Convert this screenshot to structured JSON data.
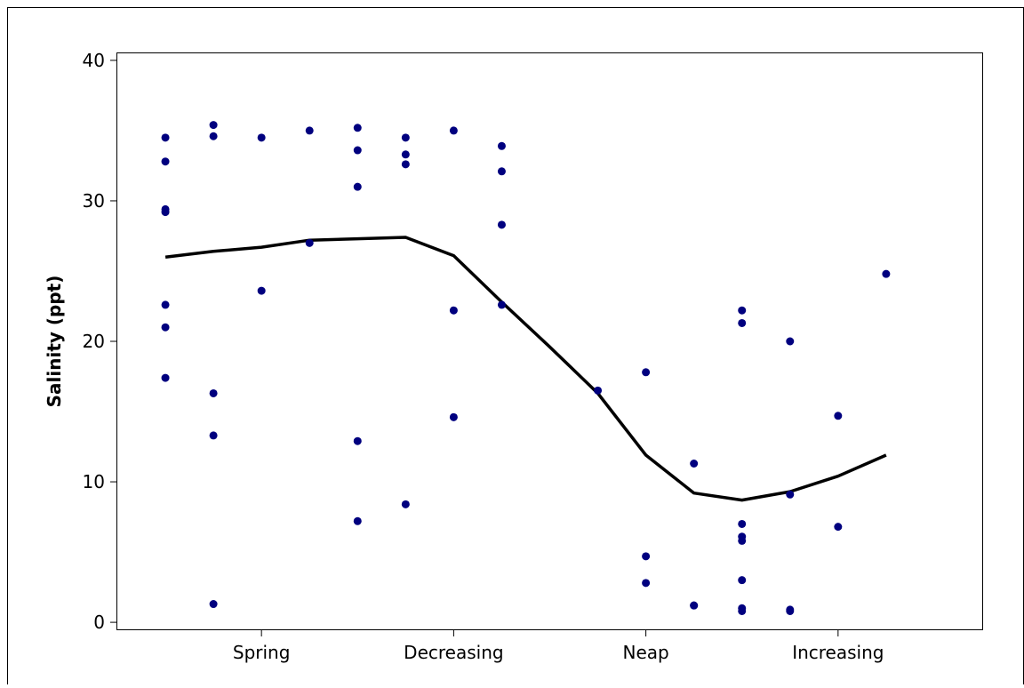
{
  "chart_data": {
    "type": "scatter",
    "title": "",
    "xlabel": "",
    "ylabel": "Salinity (ppt)",
    "ylim": [
      -0.5,
      40.5
    ],
    "xlim": [
      0,
      18
    ],
    "y_ticks": [
      0,
      10,
      20,
      30,
      40
    ],
    "x_tick_labels": [
      {
        "x": 3,
        "label": "Spring"
      },
      {
        "x": 7,
        "label": "Decreasing"
      },
      {
        "x": 11,
        "label": "Neap"
      },
      {
        "x": 15,
        "label": "Increasing"
      }
    ],
    "grid": false,
    "legend": "none",
    "colors": {
      "points": "#00007f",
      "line": "#000000"
    },
    "points": [
      {
        "x": 1,
        "y": 34.5
      },
      {
        "x": 1,
        "y": 32.8
      },
      {
        "x": 1,
        "y": 29.4
      },
      {
        "x": 1,
        "y": 29.2
      },
      {
        "x": 1,
        "y": 22.6
      },
      {
        "x": 1,
        "y": 21.0
      },
      {
        "x": 1,
        "y": 17.4
      },
      {
        "x": 2,
        "y": 35.4
      },
      {
        "x": 2,
        "y": 34.6
      },
      {
        "x": 2,
        "y": 16.3
      },
      {
        "x": 2,
        "y": 13.3
      },
      {
        "x": 2,
        "y": 1.3
      },
      {
        "x": 3,
        "y": 34.5
      },
      {
        "x": 3,
        "y": 23.6
      },
      {
        "x": 4,
        "y": 35.0
      },
      {
        "x": 4,
        "y": 27.0
      },
      {
        "x": 5,
        "y": 35.2
      },
      {
        "x": 5,
        "y": 33.6
      },
      {
        "x": 5,
        "y": 31.0
      },
      {
        "x": 5,
        "y": 12.9
      },
      {
        "x": 5,
        "y": 7.2
      },
      {
        "x": 6,
        "y": 34.5
      },
      {
        "x": 6,
        "y": 33.3
      },
      {
        "x": 6,
        "y": 32.6
      },
      {
        "x": 6,
        "y": 8.4
      },
      {
        "x": 7,
        "y": 35.0
      },
      {
        "x": 7,
        "y": 22.2
      },
      {
        "x": 7,
        "y": 14.6
      },
      {
        "x": 8,
        "y": 33.9
      },
      {
        "x": 8,
        "y": 32.1
      },
      {
        "x": 8,
        "y": 28.3
      },
      {
        "x": 8,
        "y": 22.6
      },
      {
        "x": 10,
        "y": 16.5
      },
      {
        "x": 11,
        "y": 17.8
      },
      {
        "x": 11,
        "y": 4.7
      },
      {
        "x": 11,
        "y": 2.8
      },
      {
        "x": 12,
        "y": 11.3
      },
      {
        "x": 12,
        "y": 1.2
      },
      {
        "x": 12,
        "y": 1.2
      },
      {
        "x": 13,
        "y": 22.2
      },
      {
        "x": 13,
        "y": 21.3
      },
      {
        "x": 13,
        "y": 7.0
      },
      {
        "x": 13,
        "y": 6.1
      },
      {
        "x": 13,
        "y": 5.8
      },
      {
        "x": 13,
        "y": 3.0
      },
      {
        "x": 13,
        "y": 1.0
      },
      {
        "x": 13,
        "y": 0.8
      },
      {
        "x": 14,
        "y": 20.0
      },
      {
        "x": 14,
        "y": 9.1
      },
      {
        "x": 14,
        "y": 0.9
      },
      {
        "x": 14,
        "y": 0.8
      },
      {
        "x": 15,
        "y": 14.7
      },
      {
        "x": 15,
        "y": 6.8
      },
      {
        "x": 16,
        "y": 24.8
      }
    ],
    "trend_line": [
      {
        "x": 1,
        "y": 26.0
      },
      {
        "x": 2,
        "y": 26.4
      },
      {
        "x": 3,
        "y": 26.7
      },
      {
        "x": 4,
        "y": 27.2
      },
      {
        "x": 5,
        "y": 27.3
      },
      {
        "x": 6,
        "y": 27.4
      },
      {
        "x": 7,
        "y": 26.1
      },
      {
        "x": 8,
        "y": 22.8
      },
      {
        "x": 9,
        "y": 19.6
      },
      {
        "x": 10,
        "y": 16.3
      },
      {
        "x": 11,
        "y": 11.9
      },
      {
        "x": 12,
        "y": 9.2
      },
      {
        "x": 13,
        "y": 8.7
      },
      {
        "x": 14,
        "y": 9.3
      },
      {
        "x": 15,
        "y": 10.4
      },
      {
        "x": 16,
        "y": 11.9
      }
    ]
  }
}
